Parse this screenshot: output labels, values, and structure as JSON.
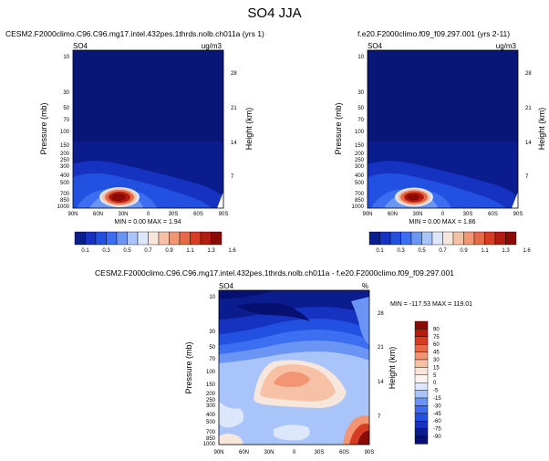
{
  "title": "SO4 JJA",
  "panels": [
    {
      "header_left": "CESM2.F2000climo.C96.C96.mg17.intel.432pes.1thrds.nolb.ch011a (yrs 1)",
      "var": "SO4",
      "units": "ug/m3",
      "stats": "MIN =  0.00  MAX =  1.94"
    },
    {
      "header_left": "f.e20.F2000climo.f09_f09.297.001 (yrs 2-11)",
      "var": "SO4",
      "units": "ug/m3",
      "stats": "MIN =  0.00  MAX =  1.86"
    },
    {
      "header_left": "CESM2.F2000climo.C96.C96.mg17.intel.432pes.1thrds.nolb.ch011a - f.e20.F2000climo.f09_f09.297.001",
      "var": "SO4",
      "units": "%",
      "stats": "MIN = -117.53  MAX = 119.01"
    }
  ],
  "chart_data": [
    {
      "type": "heatmap",
      "title": "CESM2.F2000climo.C96.C96.mg17.intel.432pes.1thrds.nolb.ch011a (yrs 1)",
      "xlabel": "",
      "ylabel": "Pressure (mb)",
      "y2label": "Height (km)",
      "x_ticks": [
        "90N",
        "60N",
        "30N",
        "0",
        "30S",
        "60S",
        "90S"
      ],
      "y_ticks": [
        "10",
        "30",
        "50",
        "70",
        "100",
        "150",
        "200",
        "250",
        "300",
        "400",
        "500",
        "700",
        "850",
        "1000"
      ],
      "y2_ticks": [
        "28",
        "21",
        "14",
        "7"
      ],
      "ylim": [
        1000,
        10
      ],
      "peak": {
        "lat": "~30N",
        "pressure": "~800 mb",
        "value": 1.94
      },
      "min": 0.0,
      "max": 1.94
    },
    {
      "type": "heatmap",
      "title": "f.e20.F2000climo.f09_f09.297.001 (yrs 2-11)",
      "xlabel": "",
      "ylabel": "Pressure (mb)",
      "y2label": "Height (km)",
      "x_ticks": [
        "90N",
        "60N",
        "30N",
        "0",
        "30S",
        "60S",
        "90S"
      ],
      "y_ticks": [
        "10",
        "30",
        "50",
        "70",
        "100",
        "150",
        "200",
        "250",
        "300",
        "400",
        "500",
        "700",
        "850",
        "1000"
      ],
      "y2_ticks": [
        "28",
        "21",
        "14",
        "7"
      ],
      "ylim": [
        1000,
        10
      ],
      "peak": {
        "lat": "~30N",
        "pressure": "~800 mb",
        "value": 1.86
      },
      "min": 0.0,
      "max": 1.86
    },
    {
      "type": "heatmap",
      "title": "CESM2.F2000climo.C96.C96.mg17.intel.432pes.1thrds.nolb.ch011a - f.e20.F2000climo.f09_f09.297.001",
      "xlabel": "",
      "ylabel": "Pressure (mb)",
      "y2label": "Height (km)",
      "x_ticks": [
        "90N",
        "60N",
        "30N",
        "0",
        "30S",
        "60S",
        "90S"
      ],
      "y_ticks": [
        "10",
        "30",
        "50",
        "70",
        "100",
        "150",
        "200",
        "250",
        "300",
        "400",
        "500",
        "700",
        "850",
        "1000"
      ],
      "y2_ticks": [
        "28",
        "21",
        "14",
        "7"
      ],
      "ylim": [
        1000,
        10
      ],
      "min": -117.53,
      "max": 119.01
    }
  ],
  "colorbar_top": {
    "labels": [
      "0.1",
      "0.3",
      "0.5",
      "0.7",
      "0.9",
      "1.1",
      "1.3",
      "1.6"
    ],
    "colors": [
      "#0a1d8f",
      "#1533c0",
      "#2250e0",
      "#3b6ef0",
      "#6a95f4",
      "#a9c4f8",
      "#dce7fb",
      "#f7e6dc",
      "#f7c1a6",
      "#f29573",
      "#e66a48",
      "#d43d24",
      "#b51c10",
      "#8a0a05"
    ]
  },
  "colorbar_diff": {
    "labels": [
      "90",
      "75",
      "60",
      "45",
      "30",
      "15",
      "5",
      "0",
      "-5",
      "-15",
      "-30",
      "-45",
      "-60",
      "-75",
      "-90"
    ],
    "colors": [
      "#8a0a05",
      "#b51c10",
      "#d43d24",
      "#e66a48",
      "#f29573",
      "#f7c1a6",
      "#f7e6dc",
      "#fbf4ef",
      "#dce7fb",
      "#a9c4f8",
      "#6a95f4",
      "#3b6ef0",
      "#2250e0",
      "#1533c0",
      "#0a1d8f",
      "#061070"
    ]
  }
}
